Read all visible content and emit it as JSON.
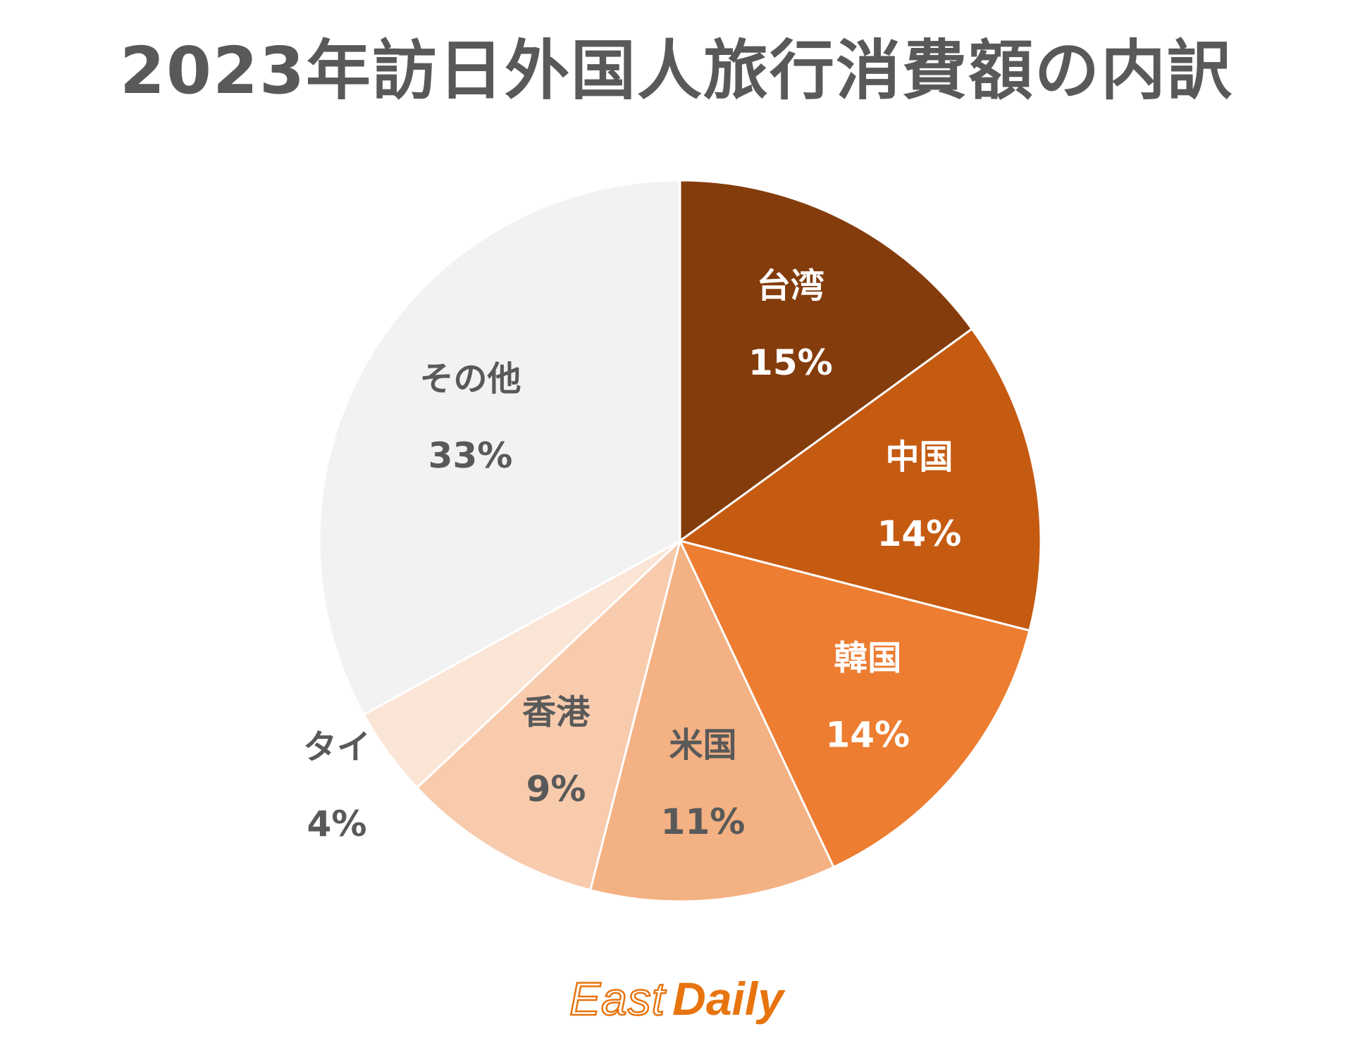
{
  "title": "2023年訪日外国人旅行消費額の内訳",
  "chart_data": {
    "type": "pie",
    "title": "2023年訪日外国人旅行消費額の内訳",
    "start_angle_deg": 0,
    "direction": "clockwise",
    "slices": [
      {
        "label": "台湾",
        "value": 15,
        "value_label": "15%",
        "color": "#843c0c",
        "text_color": "#ffffff"
      },
      {
        "label": "中国",
        "value": 14,
        "value_label": "14%",
        "color": "#c55a11",
        "text_color": "#ffffff"
      },
      {
        "label": "韓国",
        "value": 14,
        "value_label": "14%",
        "color": "#ed7d31",
        "text_color": "#ffffff"
      },
      {
        "label": "米国",
        "value": 11,
        "value_label": "11%",
        "color": "#f4b183",
        "text_color": "#595959"
      },
      {
        "label": "香港",
        "value": 9,
        "value_label": "9%",
        "color": "#f8cbad",
        "text_color": "#595959"
      },
      {
        "label": "タイ",
        "value": 4,
        "value_label": "4%",
        "color": "#fbe5d6",
        "text_color": "#595959"
      },
      {
        "label": "その他",
        "value": 33,
        "value_label": "33%",
        "color": "#f2f2f2",
        "text_color": "#595959"
      }
    ]
  },
  "logo": {
    "east": "East",
    "daily": "Daily",
    "color": "#e8740f"
  }
}
